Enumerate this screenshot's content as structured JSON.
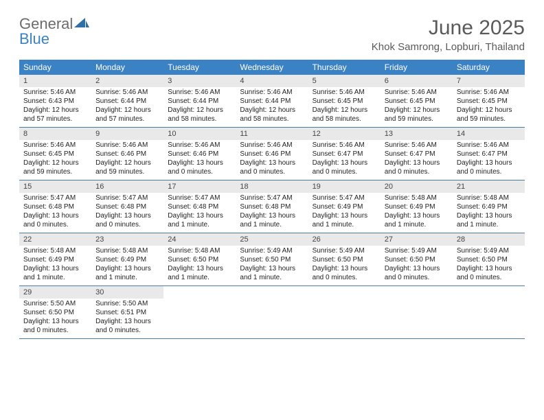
{
  "brand": {
    "part1": "General",
    "part2": "Blue"
  },
  "title": "June 2025",
  "location": "Khok Samrong, Lopburi, Thailand",
  "colors": {
    "header_bg": "#3b82c4",
    "daynum_bg": "#e9e9e9",
    "border": "#4a7ba6",
    "sail": "#2f6fa8"
  },
  "daysOfWeek": [
    "Sunday",
    "Monday",
    "Tuesday",
    "Wednesday",
    "Thursday",
    "Friday",
    "Saturday"
  ],
  "weeks": [
    [
      {
        "n": "1",
        "sr": "5:46 AM",
        "ss": "6:43 PM",
        "dl": "12 hours and 57 minutes."
      },
      {
        "n": "2",
        "sr": "5:46 AM",
        "ss": "6:44 PM",
        "dl": "12 hours and 57 minutes."
      },
      {
        "n": "3",
        "sr": "5:46 AM",
        "ss": "6:44 PM",
        "dl": "12 hours and 58 minutes."
      },
      {
        "n": "4",
        "sr": "5:46 AM",
        "ss": "6:44 PM",
        "dl": "12 hours and 58 minutes."
      },
      {
        "n": "5",
        "sr": "5:46 AM",
        "ss": "6:45 PM",
        "dl": "12 hours and 58 minutes."
      },
      {
        "n": "6",
        "sr": "5:46 AM",
        "ss": "6:45 PM",
        "dl": "12 hours and 59 minutes."
      },
      {
        "n": "7",
        "sr": "5:46 AM",
        "ss": "6:45 PM",
        "dl": "12 hours and 59 minutes."
      }
    ],
    [
      {
        "n": "8",
        "sr": "5:46 AM",
        "ss": "6:45 PM",
        "dl": "12 hours and 59 minutes."
      },
      {
        "n": "9",
        "sr": "5:46 AM",
        "ss": "6:46 PM",
        "dl": "12 hours and 59 minutes."
      },
      {
        "n": "10",
        "sr": "5:46 AM",
        "ss": "6:46 PM",
        "dl": "13 hours and 0 minutes."
      },
      {
        "n": "11",
        "sr": "5:46 AM",
        "ss": "6:46 PM",
        "dl": "13 hours and 0 minutes."
      },
      {
        "n": "12",
        "sr": "5:46 AM",
        "ss": "6:47 PM",
        "dl": "13 hours and 0 minutes."
      },
      {
        "n": "13",
        "sr": "5:46 AM",
        "ss": "6:47 PM",
        "dl": "13 hours and 0 minutes."
      },
      {
        "n": "14",
        "sr": "5:46 AM",
        "ss": "6:47 PM",
        "dl": "13 hours and 0 minutes."
      }
    ],
    [
      {
        "n": "15",
        "sr": "5:47 AM",
        "ss": "6:48 PM",
        "dl": "13 hours and 0 minutes."
      },
      {
        "n": "16",
        "sr": "5:47 AM",
        "ss": "6:48 PM",
        "dl": "13 hours and 0 minutes."
      },
      {
        "n": "17",
        "sr": "5:47 AM",
        "ss": "6:48 PM",
        "dl": "13 hours and 1 minute."
      },
      {
        "n": "18",
        "sr": "5:47 AM",
        "ss": "6:48 PM",
        "dl": "13 hours and 1 minute."
      },
      {
        "n": "19",
        "sr": "5:47 AM",
        "ss": "6:49 PM",
        "dl": "13 hours and 1 minute."
      },
      {
        "n": "20",
        "sr": "5:48 AM",
        "ss": "6:49 PM",
        "dl": "13 hours and 1 minute."
      },
      {
        "n": "21",
        "sr": "5:48 AM",
        "ss": "6:49 PM",
        "dl": "13 hours and 1 minute."
      }
    ],
    [
      {
        "n": "22",
        "sr": "5:48 AM",
        "ss": "6:49 PM",
        "dl": "13 hours and 1 minute."
      },
      {
        "n": "23",
        "sr": "5:48 AM",
        "ss": "6:49 PM",
        "dl": "13 hours and 1 minute."
      },
      {
        "n": "24",
        "sr": "5:48 AM",
        "ss": "6:50 PM",
        "dl": "13 hours and 1 minute."
      },
      {
        "n": "25",
        "sr": "5:49 AM",
        "ss": "6:50 PM",
        "dl": "13 hours and 1 minute."
      },
      {
        "n": "26",
        "sr": "5:49 AM",
        "ss": "6:50 PM",
        "dl": "13 hours and 0 minutes."
      },
      {
        "n": "27",
        "sr": "5:49 AM",
        "ss": "6:50 PM",
        "dl": "13 hours and 0 minutes."
      },
      {
        "n": "28",
        "sr": "5:49 AM",
        "ss": "6:50 PM",
        "dl": "13 hours and 0 minutes."
      }
    ],
    [
      {
        "n": "29",
        "sr": "5:50 AM",
        "ss": "6:50 PM",
        "dl": "13 hours and 0 minutes."
      },
      {
        "n": "30",
        "sr": "5:50 AM",
        "ss": "6:51 PM",
        "dl": "13 hours and 0 minutes."
      },
      null,
      null,
      null,
      null,
      null
    ]
  ],
  "labels": {
    "sunrise": "Sunrise: ",
    "sunset": "Sunset: ",
    "daylight": "Daylight: "
  }
}
